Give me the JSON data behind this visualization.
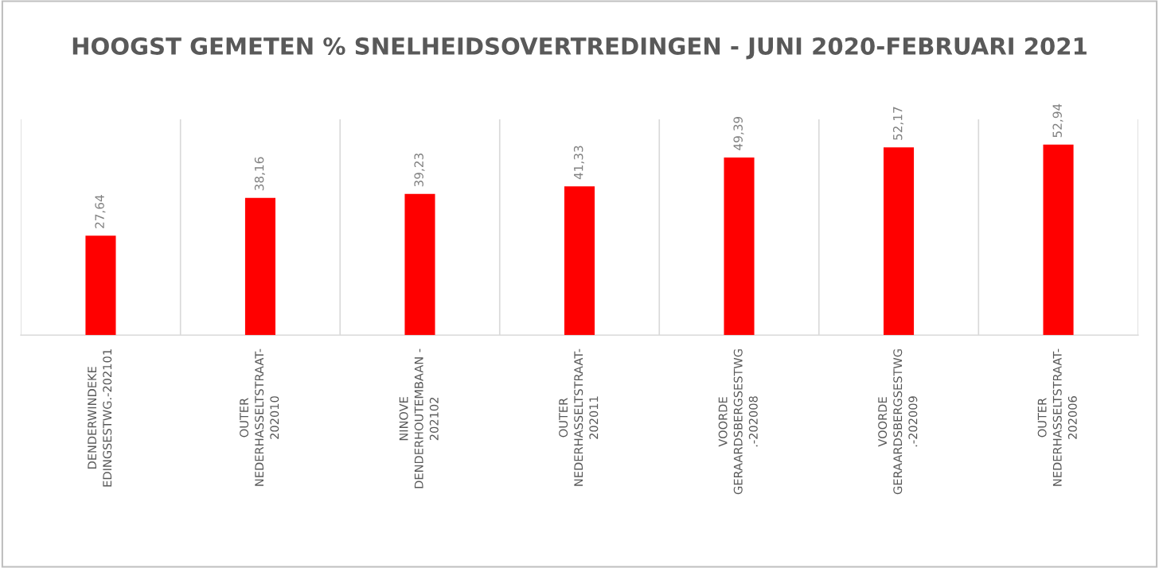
{
  "chart_data": {
    "type": "bar",
    "title": "HOOGST GEMETEN % SNELHEIDSOVERTREDINGEN - JUNI 2020-FEBRUARI 2021",
    "categories": [
      "DENDERWINDEKE\nEDINGSESTWG.-202101",
      "OUTER\nNEDERHASSELTSTRAAT-\n202010",
      "NINOVE\nDENDERHOUTEMBAAN -\n202102",
      "OUTER\nNEDERHASSELTSTRAAT-\n202011",
      "VOORDE\nGERAARDSBERGSESTWG\n.-202008",
      "VOORDE\nGERAARDSBERGSESTWG\n.-202009",
      "OUTER\nNEDERHASSELTSTRAAT-\n202006"
    ],
    "values": [
      27.64,
      38.16,
      39.23,
      41.33,
      49.39,
      52.17,
      52.94
    ],
    "value_labels": [
      "27,64",
      "38,16",
      "39,23",
      "41,33",
      "49,39",
      "52,17",
      "52,94"
    ],
    "color": "#ff0000",
    "ylim": [
      0,
      60
    ],
    "grid": "x",
    "legend": false,
    "tick_labels": "x"
  }
}
